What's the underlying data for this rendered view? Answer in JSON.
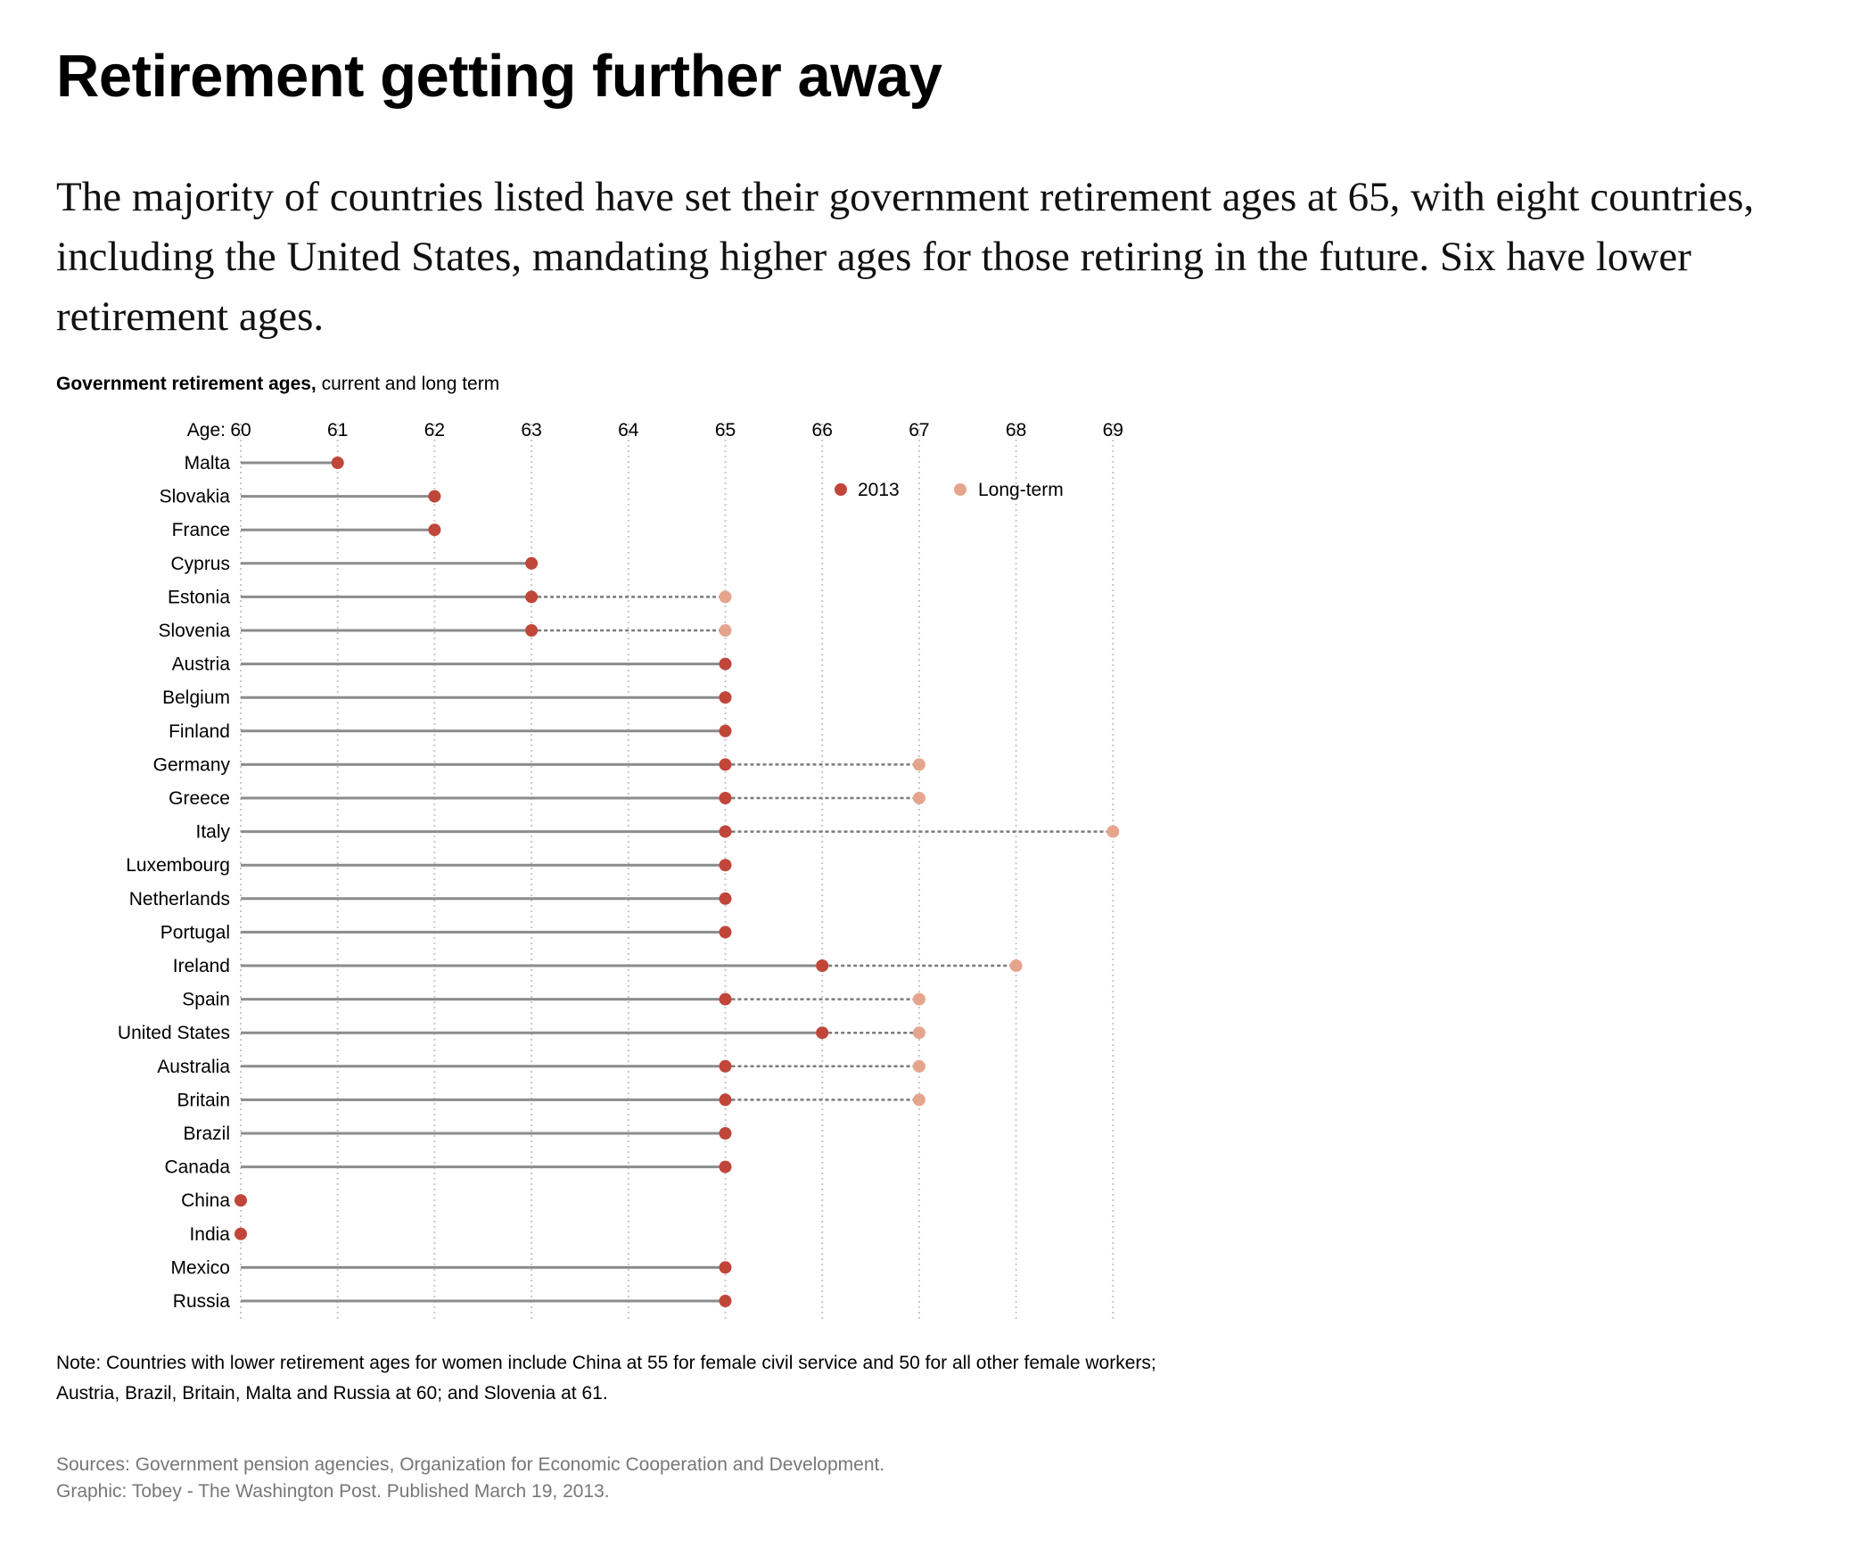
{
  "headline": "Retirement getting further away",
  "dek": "The majority of countries listed have set their government retirement ages at 65, with eight countries, including the United States, mandating higher ages for those retiring in the future. Six have lower retirement ages.",
  "chart_label": {
    "bold": "Government retirement ages,",
    "rest": " current and long term"
  },
  "note": "Note: Countries with lower retirement ages for women include China at 55 for female civil service and 50 for all other female workers; Austria, Brazil, Britain, Malta and Russia at 60; and Slovenia at 61.",
  "sources": "Sources: Government pension agencies, Organization for Economic Cooperation and Development.",
  "graphic_credit": "Graphic: Tobey - The Washington Post. Published March 19, 2013.",
  "colors": {
    "current": "#c0463a",
    "long_term": "#e5a58d",
    "bar": "#8c8c8c",
    "grid": "#c8c8c8"
  },
  "chart_data": {
    "type": "dot-range",
    "title": "Government retirement ages, current and long term",
    "axis_prefix": "Age:",
    "xlim": [
      60,
      69
    ],
    "ticks": [
      60,
      61,
      62,
      63,
      64,
      65,
      66,
      67,
      68,
      69
    ],
    "grid": true,
    "legend_position": "top-right",
    "series": [
      {
        "name": "2013",
        "key": "current"
      },
      {
        "name": "Long-term",
        "key": "long_term"
      }
    ],
    "rows": [
      {
        "country": "Malta",
        "current": 61,
        "long_term": null
      },
      {
        "country": "Slovakia",
        "current": 62,
        "long_term": null
      },
      {
        "country": "France",
        "current": 62,
        "long_term": null
      },
      {
        "country": "Cyprus",
        "current": 63,
        "long_term": null
      },
      {
        "country": "Estonia",
        "current": 63,
        "long_term": 65
      },
      {
        "country": "Slovenia",
        "current": 63,
        "long_term": 65
      },
      {
        "country": "Austria",
        "current": 65,
        "long_term": null
      },
      {
        "country": "Belgium",
        "current": 65,
        "long_term": null
      },
      {
        "country": "Finland",
        "current": 65,
        "long_term": null
      },
      {
        "country": "Germany",
        "current": 65,
        "long_term": 67
      },
      {
        "country": "Greece",
        "current": 65,
        "long_term": 67
      },
      {
        "country": "Italy",
        "current": 65,
        "long_term": 69
      },
      {
        "country": "Luxembourg",
        "current": 65,
        "long_term": null
      },
      {
        "country": "Netherlands",
        "current": 65,
        "long_term": null
      },
      {
        "country": "Portugal",
        "current": 65,
        "long_term": null
      },
      {
        "country": "Ireland",
        "current": 66,
        "long_term": 68
      },
      {
        "country": "Spain",
        "current": 65,
        "long_term": 67
      },
      {
        "country": "United States",
        "current": 66,
        "long_term": 67
      },
      {
        "country": "Australia",
        "current": 65,
        "long_term": 67
      },
      {
        "country": "Britain",
        "current": 65,
        "long_term": 67
      },
      {
        "country": "Brazil",
        "current": 65,
        "long_term": null
      },
      {
        "country": "Canada",
        "current": 65,
        "long_term": null
      },
      {
        "country": "China",
        "current": 60,
        "long_term": null
      },
      {
        "country": "India",
        "current": 60,
        "long_term": null
      },
      {
        "country": "Mexico",
        "current": 65,
        "long_term": null
      },
      {
        "country": "Russia",
        "current": 65,
        "long_term": null
      }
    ]
  }
}
